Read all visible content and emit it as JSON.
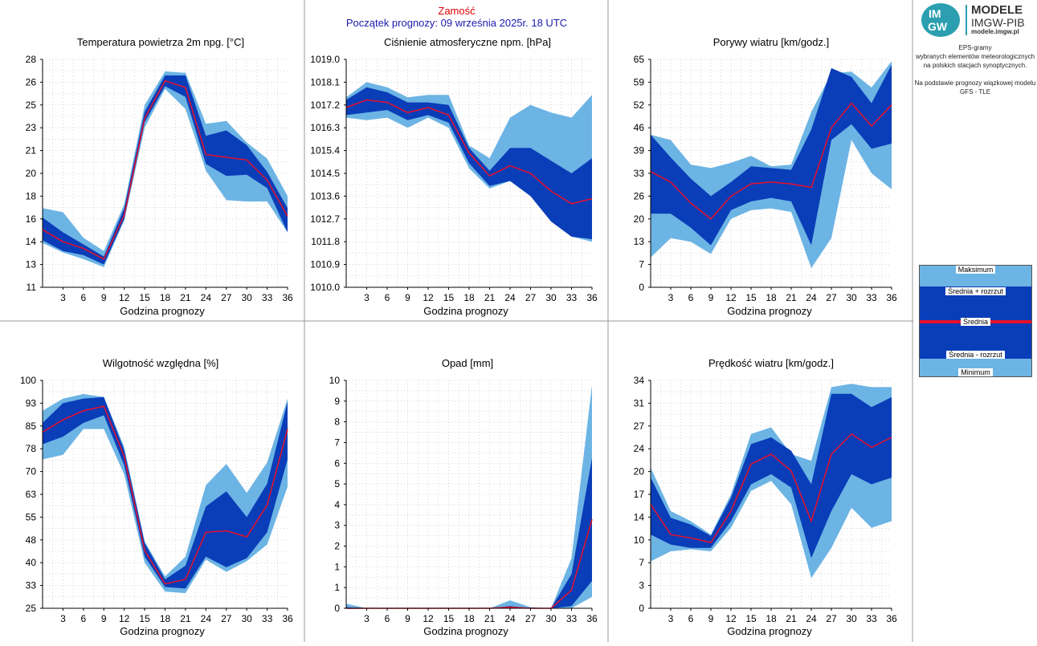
{
  "header": {
    "location": "Zamość",
    "forecast_start": "Początek prognozy: 09 września 2025r. 18 UTC"
  },
  "colors": {
    "minmax_band": "#6cb4e4",
    "spread_band": "#0a3db8",
    "mean_line": "#e8102a",
    "grid": "#bdbdbd",
    "panel_border": "#999999"
  },
  "logo": {
    "mark_top": "IM",
    "mark_bottom": "GW",
    "title": "MODELE",
    "subtitle": "IMGW-PIB",
    "url": "modele.imgw.pl"
  },
  "description": {
    "line1": "EPS-gramy",
    "line2": "wybranych elementów meteorologicznych",
    "line3": "na polskich stacjach  synoptycznych.",
    "line4": "Na podstawie prognozy wiązkowej modelu",
    "line5": "GFS - TLE"
  },
  "legend": {
    "max": "Maksimum",
    "mean_plus": "Średnia + rozrzut",
    "mean": "Średnia",
    "mean_minus": "Średnia - rozrzut",
    "min": "Minimum"
  },
  "chart_data": [
    {
      "type": "area",
      "title": "Temperatura powietrza 2m npg. [°C]",
      "xlabel": "Godzina prognozy",
      "x": [
        0,
        3,
        6,
        9,
        12,
        15,
        18,
        21,
        24,
        27,
        30,
        33,
        36
      ],
      "xticks": [
        "3",
        "6",
        "9",
        "12",
        "15",
        "18",
        "21",
        "24",
        "27",
        "30",
        "33",
        "36"
      ],
      "yticks": [
        "11",
        "13",
        "14",
        "16",
        "18",
        "20",
        "21",
        "23",
        "25",
        "26",
        "28"
      ],
      "ylim": [
        11,
        28
      ],
      "max": [
        16.9,
        16.6,
        14.7,
        13.7,
        17.2,
        24.6,
        27.1,
        27.0,
        23.2,
        23.4,
        21.8,
        20.6,
        17.8
      ],
      "mean_plus": [
        16.2,
        15.1,
        14.2,
        13.3,
        16.9,
        24.1,
        26.8,
        26.8,
        22.3,
        22.7,
        21.6,
        19.6,
        16.9
      ],
      "mean": [
        15.3,
        14.4,
        13.9,
        13.1,
        16.4,
        23.6,
        26.4,
        25.9,
        20.9,
        20.7,
        20.5,
        19.0,
        16.3
      ],
      "mean_minus": [
        14.5,
        13.7,
        13.4,
        12.7,
        16.1,
        23.3,
        26.0,
        25.2,
        20.2,
        19.3,
        19.4,
        18.4,
        15.1
      ],
      "min": [
        14.3,
        13.6,
        13.1,
        12.5,
        16.0,
        22.9,
        25.8,
        24.3,
        19.7,
        17.5,
        17.4,
        17.4,
        15.1
      ]
    },
    {
      "type": "area",
      "title": "Ciśnienie atmosferyczne npm. [hPa]",
      "xlabel": "Godzina prognozy",
      "x": [
        0,
        3,
        6,
        9,
        12,
        15,
        18,
        21,
        24,
        27,
        30,
        33,
        36
      ],
      "xticks": [
        "3",
        "6",
        "9",
        "12",
        "15",
        "18",
        "21",
        "24",
        "27",
        "30",
        "33",
        "36"
      ],
      "yticks": [
        "1010.0",
        "1010.9",
        "1011.8",
        "1012.7",
        "1013.6",
        "1014.5",
        "1015.4",
        "1016.3",
        "1017.2",
        "1018.1",
        "1019.0"
      ],
      "ylim": [
        1010.0,
        1019.0
      ],
      "max": [
        1017.5,
        1018.1,
        1017.9,
        1017.5,
        1017.6,
        1017.6,
        1015.6,
        1015.1,
        1016.7,
        1017.2,
        1016.9,
        1016.7,
        1017.6
      ],
      "mean_plus": [
        1017.4,
        1017.9,
        1017.7,
        1017.3,
        1017.3,
        1017.2,
        1015.5,
        1014.6,
        1015.5,
        1015.5,
        1015.0,
        1014.5,
        1015.1
      ],
      "mean": [
        1017.1,
        1017.4,
        1017.3,
        1016.9,
        1017.1,
        1016.8,
        1015.3,
        1014.4,
        1014.8,
        1014.5,
        1013.8,
        1013.3,
        1013.5
      ],
      "mean_minus": [
        1016.8,
        1016.9,
        1017.0,
        1016.6,
        1016.8,
        1016.5,
        1014.9,
        1014.0,
        1014.2,
        1013.6,
        1012.6,
        1012.0,
        1011.9
      ],
      "min": [
        1016.7,
        1016.6,
        1016.7,
        1016.3,
        1016.7,
        1016.3,
        1014.7,
        1013.9,
        1014.2,
        1013.6,
        1012.6,
        1012.0,
        1011.8
      ]
    },
    {
      "type": "area",
      "title": "Porywy wiatru [km/godz.]",
      "xlabel": "Godzina prognozy",
      "x": [
        0,
        3,
        6,
        9,
        12,
        15,
        18,
        21,
        24,
        27,
        30,
        33,
        36
      ],
      "xticks": [
        "3",
        "6",
        "9",
        "12",
        "15",
        "18",
        "21",
        "24",
        "27",
        "30",
        "33",
        "36"
      ],
      "yticks": [
        "0",
        "7",
        "13",
        "20",
        "26",
        "33",
        "39",
        "46",
        "52",
        "59",
        "65"
      ],
      "ylim": [
        0,
        65
      ],
      "max": [
        43.5,
        42.0,
        35.0,
        34.0,
        35.5,
        37.5,
        34.5,
        35.0,
        50.0,
        61.0,
        61.5,
        57.0,
        64.5
      ],
      "mean_plus": [
        43.5,
        37.0,
        31.0,
        26.0,
        30.0,
        34.5,
        34.0,
        33.5,
        45.0,
        62.5,
        60.0,
        52.5,
        63.5
      ],
      "mean": [
        33.0,
        30.0,
        24.0,
        19.5,
        26.0,
        29.5,
        30.0,
        29.5,
        28.5,
        45.5,
        52.5,
        46.0,
        52.0
      ],
      "mean_minus": [
        21.0,
        21.0,
        17.0,
        12.0,
        22.0,
        24.5,
        25.5,
        24.5,
        12.0,
        42.0,
        46.5,
        39.5,
        41.0
      ],
      "min": [
        8.5,
        14.0,
        13.0,
        9.5,
        19.5,
        22.0,
        22.5,
        21.5,
        5.5,
        14.0,
        42.0,
        32.5,
        28.0
      ]
    },
    {
      "type": "area",
      "title": "Wilgotność względna [%]",
      "xlabel": "Godzina prognozy",
      "x": [
        0,
        3,
        6,
        9,
        12,
        15,
        18,
        21,
        24,
        27,
        30,
        33,
        36
      ],
      "xticks": [
        "3",
        "6",
        "9",
        "12",
        "15",
        "18",
        "21",
        "24",
        "27",
        "30",
        "33",
        "36"
      ],
      "yticks": [
        "25",
        "33",
        "40",
        "48",
        "55",
        "63",
        "70",
        "78",
        "85",
        "93",
        "100"
      ],
      "ylim": [
        25,
        100
      ],
      "max": [
        90.0,
        94.0,
        95.5,
        94.5,
        78.0,
        47.0,
        35.5,
        42.0,
        65.5,
        72.5,
        63.0,
        73.0,
        94.0
      ],
      "mean_plus": [
        86.0,
        92.5,
        94.0,
        94.5,
        77.0,
        46.5,
        34.5,
        39.0,
        58.5,
        63.5,
        55.0,
        66.0,
        93.0
      ],
      "mean": [
        83.0,
        87.0,
        90.0,
        91.5,
        75.0,
        44.0,
        33.0,
        34.5,
        50.0,
        50.5,
        48.5,
        59.0,
        84.0
      ],
      "mean_minus": [
        79.0,
        81.5,
        86.0,
        88.5,
        72.0,
        42.0,
        32.0,
        31.5,
        42.0,
        38.5,
        41.5,
        50.0,
        74.0
      ],
      "min": [
        74.0,
        75.5,
        84.0,
        84.0,
        69.0,
        40.0,
        30.5,
        30.0,
        41.0,
        37.0,
        40.5,
        46.0,
        65.0
      ]
    },
    {
      "type": "area",
      "title": "Opad [mm]",
      "xlabel": "Godzina prognozy",
      "x": [
        0,
        3,
        6,
        9,
        12,
        15,
        18,
        21,
        24,
        27,
        30,
        33,
        36
      ],
      "xticks": [
        "3",
        "6",
        "9",
        "12",
        "15",
        "18",
        "21",
        "24",
        "27",
        "30",
        "33",
        "36"
      ],
      "yticks": [
        "0",
        "1",
        "1",
        "2",
        "3",
        "4",
        "5",
        "6",
        "7",
        "8",
        "9",
        "10"
      ],
      "ylim": [
        0,
        10
      ],
      "max": [
        0.2,
        0.0,
        0.0,
        0.0,
        0.0,
        0.0,
        0.0,
        0.0,
        0.35,
        0.05,
        0.0,
        2.2,
        9.8
      ],
      "mean_plus": [
        0.05,
        0.0,
        0.0,
        0.0,
        0.0,
        0.0,
        0.0,
        0.0,
        0.1,
        0.0,
        0.0,
        1.5,
        6.6
      ],
      "mean": [
        0.0,
        0.0,
        0.0,
        0.0,
        0.0,
        0.0,
        0.0,
        0.0,
        0.05,
        0.0,
        0.0,
        0.8,
        3.9
      ],
      "mean_minus": [
        0.0,
        0.0,
        0.0,
        0.0,
        0.0,
        0.0,
        0.0,
        0.0,
        0.0,
        0.0,
        0.0,
        0.1,
        1.2
      ],
      "min": [
        0.0,
        0.0,
        0.0,
        0.0,
        0.0,
        0.0,
        0.0,
        0.0,
        0.0,
        0.0,
        0.0,
        0.0,
        0.5
      ]
    },
    {
      "type": "area",
      "title": "Prędkość wiatru [km/godz.]",
      "xlabel": "Godzina prognozy",
      "x": [
        0,
        3,
        6,
        9,
        12,
        15,
        18,
        21,
        24,
        27,
        30,
        33,
        36
      ],
      "xticks": [
        "3",
        "6",
        "9",
        "12",
        "15",
        "18",
        "21",
        "24",
        "27",
        "30",
        "33",
        "36"
      ],
      "yticks": [
        "0",
        "3",
        "7",
        "10",
        "14",
        "17",
        "20",
        "24",
        "27",
        "31",
        "34"
      ],
      "ylim": [
        0,
        34
      ],
      "max": [
        21.0,
        14.5,
        13.0,
        11.0,
        17.0,
        26.0,
        27.0,
        23.0,
        22.0,
        33.0,
        33.5,
        33.0,
        33.0
      ],
      "mean_plus": [
        19.5,
        13.5,
        12.5,
        10.8,
        16.5,
        24.5,
        25.5,
        23.5,
        18.5,
        32.0,
        32.0,
        30.0,
        31.5
      ],
      "mean": [
        15.5,
        11.0,
        10.5,
        9.8,
        14.5,
        21.5,
        23.0,
        20.5,
        13.0,
        23.0,
        26.0,
        24.0,
        25.5
      ],
      "mean_minus": [
        11.0,
        9.5,
        9.0,
        9.0,
        13.0,
        18.5,
        20.0,
        18.0,
        7.5,
        14.5,
        20.0,
        18.5,
        19.5
      ],
      "min": [
        7.0,
        8.5,
        8.8,
        8.5,
        12.0,
        17.5,
        19.0,
        15.5,
        4.5,
        9.0,
        15.0,
        12.0,
        13.0
      ]
    }
  ]
}
